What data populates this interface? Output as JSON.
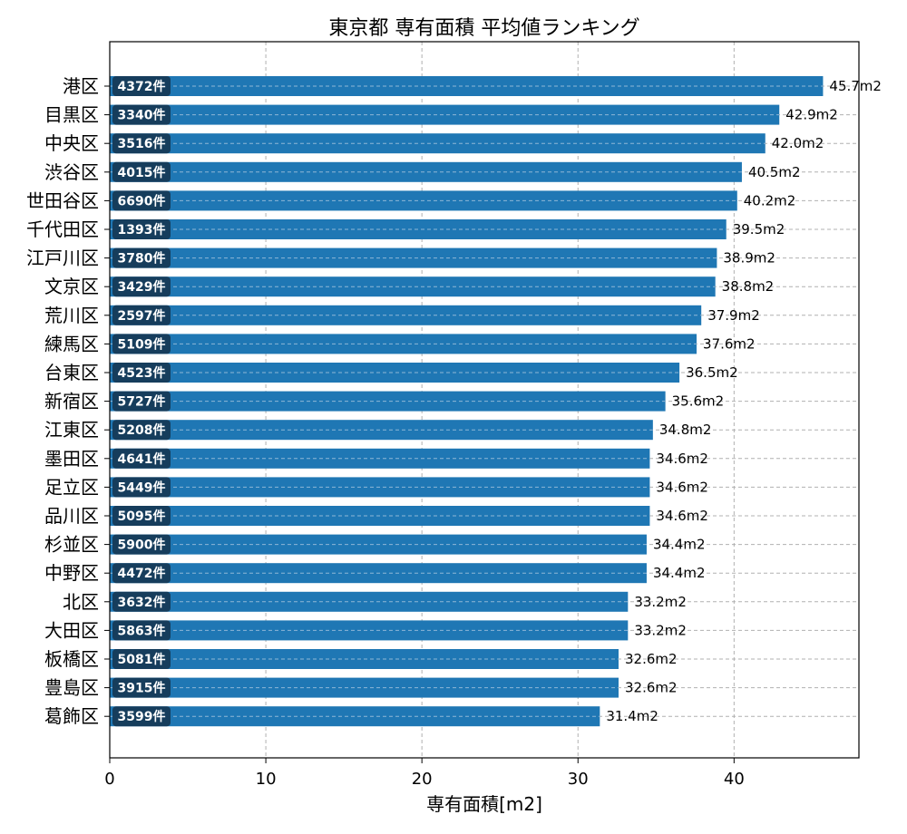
{
  "chart_data": {
    "type": "bar",
    "orientation": "horizontal",
    "title": "東京都 専有面積 平均値ランキング",
    "xlabel": "専有面積[m2]",
    "ylabel": "",
    "xlim": [
      0,
      48
    ],
    "xticks": [
      0,
      10,
      20,
      30,
      40
    ],
    "grid": true,
    "value_suffix": "m2",
    "count_suffix": "件",
    "colors": {
      "bar": "#1f77b4",
      "count_badge": "#163d5c",
      "grid": "#b0b0b0"
    },
    "categories": [
      "港区",
      "目黒区",
      "中央区",
      "渋谷区",
      "世田谷区",
      "千代田区",
      "江戸川区",
      "文京区",
      "荒川区",
      "練馬区",
      "台東区",
      "新宿区",
      "江東区",
      "墨田区",
      "足立区",
      "品川区",
      "杉並区",
      "中野区",
      "北区",
      "大田区",
      "板橋区",
      "豊島区",
      "葛飾区"
    ],
    "values": [
      45.7,
      42.9,
      42.0,
      40.5,
      40.2,
      39.5,
      38.9,
      38.8,
      37.9,
      37.6,
      36.5,
      35.6,
      34.8,
      34.6,
      34.6,
      34.6,
      34.4,
      34.4,
      33.2,
      33.2,
      32.6,
      32.6,
      31.4
    ],
    "counts": [
      4372,
      3340,
      3516,
      4015,
      6690,
      1393,
      3780,
      3429,
      2597,
      5109,
      4523,
      5727,
      5208,
      4641,
      5449,
      5095,
      5900,
      4472,
      3632,
      5863,
      5081,
      3915,
      3599
    ]
  }
}
